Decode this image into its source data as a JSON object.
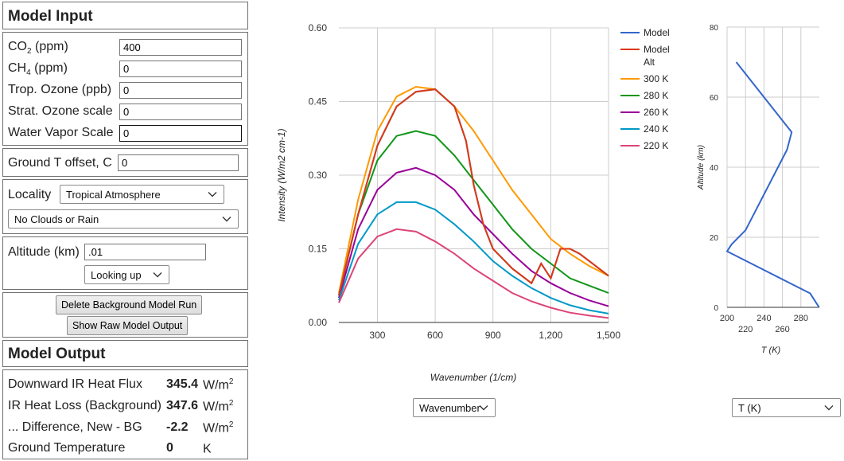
{
  "model_input": {
    "title": "Model Input",
    "co2": {
      "label_main": "CO",
      "label_sub": "2",
      "label_unit": " (ppm)",
      "value": "400"
    },
    "ch4": {
      "label_main": "CH",
      "label_sub": "4",
      "label_unit": " (ppm)",
      "value": "0"
    },
    "trop_ozone": {
      "label": "Trop. Ozone (ppb)",
      "value": "0"
    },
    "strat_ozone": {
      "label": "Strat. Ozone scale",
      "value": "0"
    },
    "water_vapor": {
      "label": "Water Vapor Scale",
      "value": "0"
    },
    "ground_t": {
      "label": "Ground T offset, C",
      "value": "0"
    },
    "locality": {
      "label": "Locality",
      "value": "Tropical Atmosphere"
    },
    "clouds": {
      "value": "No Clouds or Rain"
    },
    "altitude": {
      "label": "Altitude (km)",
      "value": ".01",
      "direction": "Looking up"
    },
    "buttons": {
      "delete_bg": "Delete Background Model Run",
      "show_raw": "Show Raw Model Output"
    }
  },
  "model_output": {
    "title": "Model Output",
    "rows": [
      {
        "label": "Downward IR Heat Flux",
        "value": "345.4",
        "unit": "W/m",
        "unit_sup": "2"
      },
      {
        "label": "IR Heat Loss (Background)",
        "value": "347.6",
        "unit": "W/m",
        "unit_sup": "2"
      },
      {
        "label": "... Difference, New - BG",
        "value": "-2.2",
        "unit": "W/m",
        "unit_sup": "2"
      },
      {
        "label": "Ground Temperature",
        "value": "0",
        "unit": "K",
        "unit_sup": ""
      }
    ]
  },
  "spectrum_axis_select": "Wavenumber",
  "profile_axis_select": "T (K)",
  "chart_data": [
    {
      "type": "line",
      "xlabel": "Wavenumber (1/cm)",
      "ylabel": "Intensity (W/m2 cm-1)",
      "xlim": [
        100,
        1500
      ],
      "ylim": [
        0,
        0.6
      ],
      "xticks": [
        "300",
        "600",
        "900",
        "1,200",
        "1,500"
      ],
      "yticks": [
        "0.00",
        "0.15",
        "0.30",
        "0.45",
        "0.60"
      ],
      "grid": true,
      "legend_position": "right",
      "series": [
        {
          "name": "Model",
          "color": "#3366cc",
          "x": [
            100,
            200,
            300,
            400,
            500,
            600,
            700,
            760,
            800,
            850,
            900,
            950,
            1000,
            1050,
            1100,
            1150,
            1200,
            1250,
            1300,
            1350,
            1400,
            1450,
            1500
          ],
          "y": [
            0.055,
            0.22,
            0.36,
            0.44,
            0.47,
            0.475,
            0.44,
            0.37,
            0.28,
            0.2,
            0.15,
            0.13,
            0.11,
            0.095,
            0.08,
            0.12,
            0.09,
            0.15,
            0.15,
            0.14,
            0.125,
            0.11,
            0.095
          ]
        },
        {
          "name": "Model Alt",
          "color": "#dc3912",
          "x": [
            100,
            200,
            300,
            400,
            500,
            600,
            700,
            760,
            800,
            850,
            900,
            950,
            1000,
            1050,
            1100,
            1150,
            1200,
            1250,
            1300,
            1350,
            1400,
            1450,
            1500
          ],
          "y": [
            0.055,
            0.22,
            0.36,
            0.44,
            0.47,
            0.475,
            0.44,
            0.37,
            0.28,
            0.2,
            0.15,
            0.13,
            0.11,
            0.095,
            0.08,
            0.12,
            0.09,
            0.15,
            0.15,
            0.14,
            0.125,
            0.11,
            0.095
          ]
        },
        {
          "name": "300 K",
          "color": "#ff9900",
          "x": [
            100,
            200,
            300,
            400,
            500,
            600,
            700,
            800,
            900,
            1000,
            1100,
            1200,
            1300,
            1400,
            1500
          ],
          "y": [
            0.06,
            0.25,
            0.39,
            0.46,
            0.48,
            0.475,
            0.44,
            0.39,
            0.33,
            0.27,
            0.22,
            0.17,
            0.14,
            0.115,
            0.095
          ]
        },
        {
          "name": "280 K",
          "color": "#109618",
          "x": [
            100,
            200,
            300,
            400,
            500,
            600,
            700,
            800,
            900,
            1000,
            1100,
            1200,
            1300,
            1400,
            1500
          ],
          "y": [
            0.055,
            0.22,
            0.33,
            0.38,
            0.39,
            0.38,
            0.34,
            0.29,
            0.24,
            0.19,
            0.15,
            0.12,
            0.09,
            0.075,
            0.06
          ]
        },
        {
          "name": "260 K",
          "color": "#990099",
          "x": [
            100,
            200,
            300,
            400,
            500,
            600,
            700,
            800,
            900,
            1000,
            1100,
            1200,
            1300,
            1400,
            1500
          ],
          "y": [
            0.05,
            0.19,
            0.27,
            0.305,
            0.315,
            0.3,
            0.27,
            0.22,
            0.18,
            0.14,
            0.105,
            0.08,
            0.06,
            0.045,
            0.033
          ]
        },
        {
          "name": "240 K",
          "color": "#0099c6",
          "x": [
            100,
            200,
            300,
            400,
            500,
            600,
            700,
            800,
            900,
            1000,
            1100,
            1200,
            1300,
            1400,
            1500
          ],
          "y": [
            0.045,
            0.16,
            0.22,
            0.245,
            0.245,
            0.23,
            0.2,
            0.165,
            0.125,
            0.095,
            0.07,
            0.05,
            0.035,
            0.025,
            0.018
          ]
        },
        {
          "name": "220 K",
          "color": "#dd4477",
          "x": [
            100,
            200,
            300,
            400,
            500,
            600,
            700,
            800,
            900,
            1000,
            1100,
            1200,
            1300,
            1400,
            1500
          ],
          "y": [
            0.04,
            0.13,
            0.175,
            0.19,
            0.185,
            0.165,
            0.14,
            0.11,
            0.085,
            0.06,
            0.043,
            0.03,
            0.02,
            0.014,
            0.009
          ]
        }
      ]
    },
    {
      "type": "line",
      "xlabel": "T (K)",
      "ylabel": "Altitude (km)",
      "xlim": [
        200,
        300
      ],
      "ylim": [
        0,
        80
      ],
      "xticks_row1": [
        "200",
        "240",
        "280"
      ],
      "xticks_row2": [
        "220",
        "260"
      ],
      "yticks": [
        "0",
        "20",
        "40",
        "60",
        "80"
      ],
      "grid": true,
      "series": [
        {
          "color": "#3366cc",
          "x": [
            299.7,
            290,
            200,
            205,
            220,
            265,
            270,
            210
          ],
          "y": [
            0,
            4,
            16,
            18,
            22,
            45,
            50,
            70
          ]
        }
      ]
    }
  ]
}
